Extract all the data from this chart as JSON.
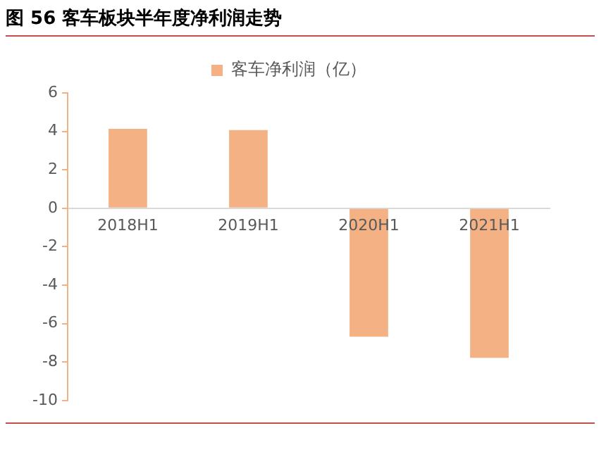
{
  "chart_data": {
    "type": "bar",
    "title": "图 56 客车板块半年度净利润走势",
    "categories": [
      "2018H1",
      "2019H1",
      "2020H1",
      "2021H1"
    ],
    "series": [
      {
        "name": "客车净利润（亿）",
        "color": "#f4b183",
        "values": [
          4.13,
          4.07,
          -6.68,
          -7.78
        ]
      }
    ],
    "ylim": [
      -10,
      6
    ],
    "yticks": [
      -10,
      -8,
      -6,
      -4,
      -2,
      0,
      2,
      4,
      6
    ],
    "grid": false,
    "legend": "top"
  }
}
